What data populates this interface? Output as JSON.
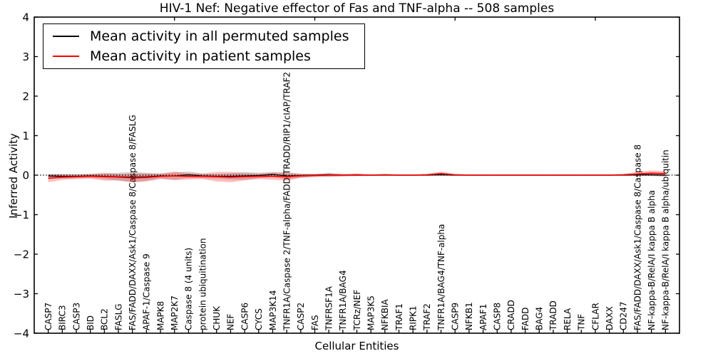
{
  "chart_data": {
    "type": "line",
    "title": "HIV-1 Nef: Negative effector of Fas and TNF-alpha -- 508 samples",
    "xlabel": "Cellular Entities",
    "ylabel": "Inferred Activity",
    "ylim": [
      -4,
      4
    ],
    "y_ticks": [
      4,
      3,
      2,
      1,
      0,
      -1,
      -2,
      -3,
      -4
    ],
    "grid": false,
    "legend_position": "upper left",
    "zero_line": {
      "y": 0,
      "style": "dotted",
      "color": "#000000"
    },
    "top_tick_indices": [
      9,
      19,
      29,
      39
    ],
    "categories": [
      "CASP7",
      "BIRC3",
      "CASP3",
      "BID",
      "BCL2",
      "FASLG",
      "FAS/FADD/DAXX/Ask1/Caspase 8/Caspase 8/FASLG",
      "APAF-1/Caspase 9",
      "MAPK8",
      "MAP2K7",
      "Caspase 8 (4 units)",
      "protein ubiquitination",
      "CHUK",
      "NEF",
      "CASP6",
      "CYCS",
      "MAP3K14",
      "TNFR1A/Caspase 2/TNF-alpha/FADD/TRADD/RIP1/cIAP/TRAF2",
      "CASP2",
      "FAS",
      "TNFRSF1A",
      "TNFR1A/BAG4",
      "TCRz/NEF",
      "MAP3K5",
      "NFKBIA",
      "TRAF1",
      "RIPK1",
      "TRAF2",
      "TNFR1A/BAG4/TNF-alpha",
      "CASP9",
      "NFKB1",
      "APAF1",
      "CASP8",
      "CRADD",
      "FADD",
      "BAG4",
      "TRADD",
      "RELA",
      "TNF",
      "CFLAR",
      "DAXX",
      "CD247",
      "FAS/FADD/DAXX/Ask1/Caspase 8/Caspase 8",
      "NF-kappa-B/RelA/I kappa B alpha",
      "NF-kappa-B/RelA/I kappa B alpha/ubiquitin"
    ],
    "series": [
      {
        "name": "Mean activity in all permuted samples",
        "color": "#000000",
        "band_color": "#000000",
        "band_opacity": 0.18,
        "values": [
          -0.02,
          -0.03,
          -0.03,
          -0.02,
          -0.03,
          -0.04,
          -0.05,
          -0.04,
          -0.02,
          -0.02,
          0.01,
          -0.02,
          -0.03,
          -0.03,
          -0.02,
          -0.01,
          0.02,
          -0.02,
          -0.01,
          0,
          0.01,
          0,
          0,
          0,
          0,
          0,
          0,
          0,
          0.01,
          0,
          0,
          0,
          0,
          0,
          0,
          0,
          0,
          0,
          0,
          0,
          0,
          0,
          0.01,
          0.01,
          0
        ],
        "band_halfwidth": [
          0.05,
          0.06,
          0.05,
          0.05,
          0.07,
          0.1,
          0.13,
          0.1,
          0.06,
          0.09,
          0.08,
          0.06,
          0.06,
          0.08,
          0.1,
          0.07,
          0.06,
          0.09,
          0.05,
          0.03,
          0.05,
          0.03,
          0.02,
          0.02,
          0.015,
          0.015,
          0.015,
          0.015,
          0.02,
          0.015,
          0.015,
          0.015,
          0.015,
          0.015,
          0.015,
          0.015,
          0.015,
          0.015,
          0.015,
          0.015,
          0.015,
          0.015,
          0.03,
          0.03,
          0.04
        ]
      },
      {
        "name": "Mean activity in patient samples",
        "color": "#ff0000",
        "band_color": "#ff0000",
        "band_opacity": 0.25,
        "values": [
          -0.08,
          -0.05,
          -0.04,
          -0.03,
          -0.04,
          -0.05,
          -0.07,
          -0.06,
          -0.03,
          -0.02,
          -0.03,
          -0.03,
          -0.04,
          -0.05,
          -0.04,
          -0.03,
          -0.03,
          -0.04,
          -0.02,
          -0.01,
          0,
          0,
          0.01,
          0,
          0.01,
          0,
          0,
          0.01,
          0.04,
          0.01,
          0,
          0,
          0,
          0,
          0,
          0,
          0,
          0,
          0,
          0,
          0,
          0.01,
          0.03,
          0.05,
          0.04
        ],
        "band_halfwidth": [
          0.1,
          0.07,
          0.06,
          0.06,
          0.1,
          0.08,
          0.11,
          0.1,
          0.07,
          0.11,
          0.08,
          0.07,
          0.12,
          0.13,
          0.09,
          0.07,
          0.09,
          0.1,
          0.05,
          0.04,
          0.04,
          0.03,
          0.03,
          0.02,
          0.02,
          0.02,
          0.02,
          0.02,
          0.05,
          0.02,
          0.02,
          0.02,
          0.02,
          0.02,
          0.02,
          0.02,
          0.02,
          0.02,
          0.02,
          0.02,
          0.02,
          0.02,
          0.05,
          0.07,
          0.06
        ]
      }
    ]
  }
}
